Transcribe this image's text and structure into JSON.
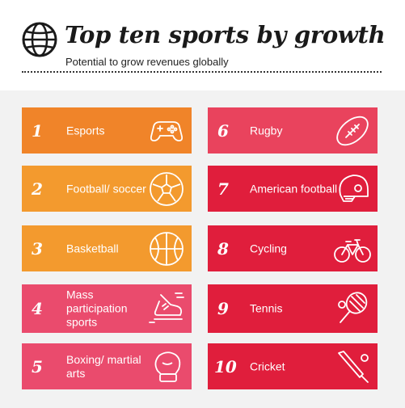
{
  "header": {
    "title": "Top ten sports by growth",
    "subtitle": "Potential to grow revenues globally"
  },
  "sports": [
    {
      "rank": "1",
      "name": "Esports",
      "icon": "gamepad-icon",
      "color": "#f08429"
    },
    {
      "rank": "2",
      "name": "Football/ soccer",
      "icon": "soccer-ball-icon",
      "color": "#f39a2e"
    },
    {
      "rank": "3",
      "name": "Basketball",
      "icon": "basketball-icon",
      "color": "#f39a2e"
    },
    {
      "rank": "4",
      "name": "Mass participation sports",
      "icon": "running-shoe-icon",
      "color": "#ea4b6d"
    },
    {
      "rank": "5",
      "name": "Boxing/ martial arts",
      "icon": "boxing-glove-icon",
      "color": "#ea4b6d"
    },
    {
      "rank": "6",
      "name": "Rugby",
      "icon": "rugby-ball-icon",
      "color": "#e9435d"
    },
    {
      "rank": "7",
      "name": "American football",
      "icon": "football-helmet-icon",
      "color": "#e01e3c"
    },
    {
      "rank": "8",
      "name": "Cycling",
      "icon": "bicycle-icon",
      "color": "#e01e3c"
    },
    {
      "rank": "9",
      "name": "Tennis",
      "icon": "tennis-racket-icon",
      "color": "#e01e3c"
    },
    {
      "rank": "10",
      "name": "Cricket",
      "icon": "cricket-bat-icon",
      "color": "#e01e3c"
    }
  ]
}
